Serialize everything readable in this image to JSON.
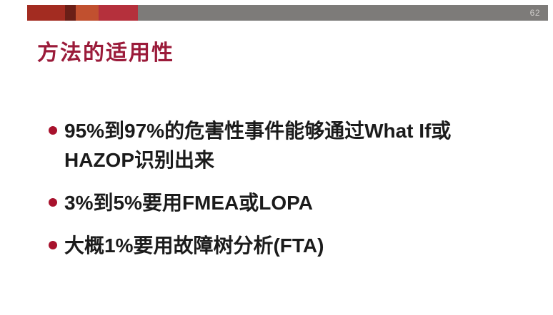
{
  "header": {
    "bar_segments": [
      {
        "name": "brick-red-segment",
        "color": "#a32c21"
      },
      {
        "name": "dark-maroon-segment",
        "color": "#6b1f17"
      },
      {
        "name": "orange-red-segment",
        "color": "#c1502f"
      },
      {
        "name": "crimson-segment",
        "color": "#b5303c"
      },
      {
        "name": "gray-segment",
        "color": "#7d7b79"
      }
    ],
    "page_number": "62",
    "page_number_color": "#cfcdcb"
  },
  "title": {
    "text": "方法的适用性",
    "color": "#9b1b3a"
  },
  "bullets": {
    "marker_color": "#a8122d",
    "text_color": "#1b1b1b",
    "items": [
      {
        "text": "95%到97%的危害性事件能够通过What If或\nHAZOP识别出来"
      },
      {
        "text": "3%到5%要用FMEA或LOPA"
      },
      {
        "text": "大概1%要用故障树分析(FTA)"
      }
    ]
  }
}
